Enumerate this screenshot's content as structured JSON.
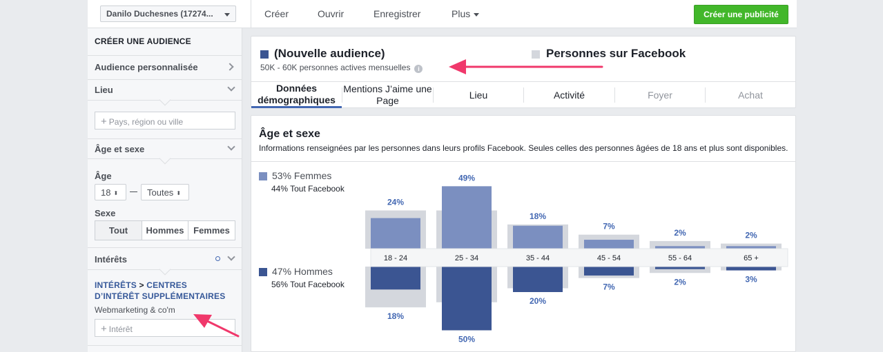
{
  "topbar": {
    "account": "Danilo Duchesnes (17274...",
    "nav": [
      "Créer",
      "Ouvrir",
      "Enregistrer",
      "Plus"
    ],
    "create_ad": "Créer une publicité"
  },
  "sidebar": {
    "title": "CRÉER UNE AUDIENCE",
    "custom_audience": "Audience personnalisée",
    "location": "Lieu",
    "location_placeholder": "Pays, région ou ville",
    "age_gender": "Âge et sexe",
    "age_label": "Âge",
    "age_min": "18",
    "age_max": "Toutes",
    "gender_label": "Sexe",
    "gender_options": [
      "Tout",
      "Hommes",
      "Femmes"
    ],
    "interests": "Intérêts",
    "breadcrumb_part1": "INTÉRÊTS",
    "breadcrumb_sep": ">",
    "breadcrumb_part2": "CENTRES D’INTÉRÊT SUPPLÉMENTAIRES",
    "interest_tag": "Webmarketing & co'm",
    "interest_placeholder": "Intérêt"
  },
  "audience": {
    "title": "(Nouvelle audience)",
    "subtitle": "50K - 60K personnes actives mensuelles",
    "info_glyph": "i",
    "compare_title": "Personnes sur Facebook",
    "tabs": [
      "Données démographiques",
      "Mentions J’aime une Page",
      "Lieu",
      "Activité",
      "Foyer",
      "Achat"
    ]
  },
  "colors": {
    "women": "#7b8fc0",
    "men": "#3b5592",
    "facebook_bar": "#d4d7dd",
    "accent": "#4267b2",
    "arrow": "#f0386b"
  },
  "chart_data": {
    "type": "bar",
    "title": "Âge et sexe",
    "subtitle": "Informations renseignées par les personnes dans leurs profils Facebook. Seules celles des personnes âgées de 18 ans et plus sont disponibles.",
    "categories": [
      "18 - 24",
      "25 - 34",
      "35 - 44",
      "45 - 54",
      "55 - 64",
      "65 +"
    ],
    "series": [
      {
        "name": "Femmes",
        "share": "53%",
        "facebook_share": "44% Tout Facebook",
        "values": [
          24,
          49,
          18,
          7,
          2,
          2
        ],
        "facebook_values": [
          30,
          30,
          19,
          11,
          6,
          4
        ]
      },
      {
        "name": "Hommes",
        "share": "47%",
        "facebook_share": "56% Tout Facebook",
        "values": [
          18,
          50,
          20,
          7,
          2,
          3
        ],
        "facebook_values": [
          32,
          28,
          17,
          9,
          5,
          3
        ]
      }
    ],
    "legend_position": "left",
    "grid": false
  }
}
